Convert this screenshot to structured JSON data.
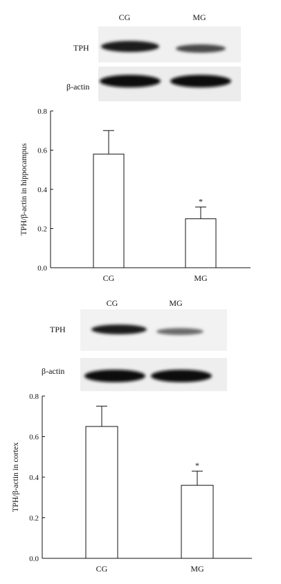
{
  "panels": [
    {
      "lanes": [
        "CG",
        "MG"
      ],
      "blot_labels": [
        "TPH",
        "β-actin"
      ],
      "chart_data": {
        "type": "bar",
        "categories": [
          "CG",
          "MG"
        ],
        "values": [
          0.58,
          0.25
        ],
        "errors": [
          0.12,
          0.06
        ],
        "significance": [
          "",
          "*"
        ],
        "title": "",
        "xlabel": "",
        "ylabel": "TPH/β-actin in hippocampus",
        "ylim": [
          0,
          0.8
        ],
        "yticks": [
          "0.0",
          "0.2",
          "0.4",
          "0.6",
          "0.8"
        ],
        "grid": false
      }
    },
    {
      "lanes": [
        "CG",
        "MG"
      ],
      "blot_labels": [
        "TPH",
        "β-actin"
      ],
      "chart_data": {
        "type": "bar",
        "categories": [
          "CG",
          "MG"
        ],
        "values": [
          0.65,
          0.36
        ],
        "errors": [
          0.1,
          0.07
        ],
        "significance": [
          "",
          "*"
        ],
        "title": "",
        "xlabel": "",
        "ylabel": "TPH/β-actin in cortex",
        "ylim": [
          0,
          0.8
        ],
        "yticks": [
          "0.0",
          "0.2",
          "0.4",
          "0.6",
          "0.8"
        ],
        "grid": false
      }
    }
  ]
}
